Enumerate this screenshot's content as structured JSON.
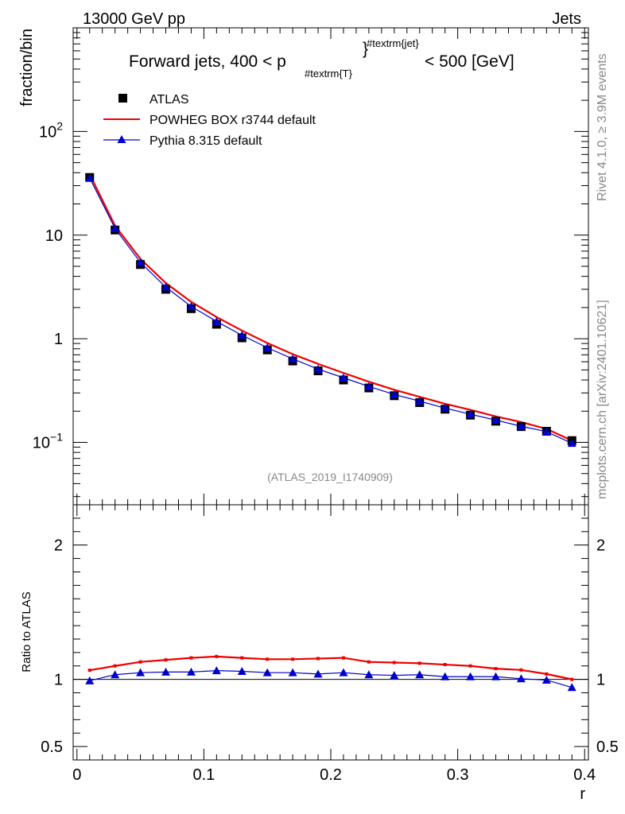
{
  "header": {
    "beam_label": "13000 GeV pp",
    "process_label": "Jets",
    "side_label_top": "Rivet 4.1.0, ≥ 3.9M events",
    "side_label_bottom": "mcplots.cern.ch [arXiv:2401.10621]",
    "watermark": "(ATLAS_2019_I1740909)"
  },
  "chart_data": [
    {
      "type": "line",
      "panel": "main",
      "title": "Forward jets, 400 < p_{#textrm{T}}^{#textrm{jet}} < 500 [GeV]",
      "title_parts": {
        "prefix": "Forward jets, 400 < p",
        "subscript": "#textrm{T}",
        "superscript": "#textrm{jet}",
        "suffix": "< 500 [GeV]"
      },
      "ylabel": "fraction/bin",
      "xlabel": "r",
      "yscale": "log",
      "xlim": [
        -0.003,
        0.403
      ],
      "ylim": [
        0.025,
        1000
      ],
      "y_tick_labels": [
        {
          "value": 100,
          "base": "10",
          "exp": "2"
        },
        {
          "value": 10,
          "base": "10",
          "exp": ""
        },
        {
          "value": 1,
          "base": "1",
          "exp": ""
        },
        {
          "value": 0.1,
          "base": "10",
          "exp": "−1"
        }
      ],
      "x": [
        0.01,
        0.03,
        0.05,
        0.07,
        0.09,
        0.11,
        0.13,
        0.15,
        0.17,
        0.19,
        0.21,
        0.23,
        0.25,
        0.27,
        0.29,
        0.31,
        0.33,
        0.35,
        0.37,
        0.39
      ],
      "series": [
        {
          "name": "ATLAS",
          "marker": "square",
          "color": "#000000",
          "values": [
            36,
            11.2,
            5.2,
            3.0,
            1.95,
            1.38,
            1.02,
            0.78,
            0.61,
            0.49,
            0.4,
            0.335,
            0.282,
            0.242,
            0.209,
            0.183,
            0.16,
            0.142,
            0.128,
            0.104
          ]
        },
        {
          "name": "POWHEG BOX r3744 default",
          "marker": "line",
          "color": "#ee0000",
          "values": [
            38.5,
            12.3,
            5.9,
            3.45,
            2.27,
            1.62,
            1.2,
            0.91,
            0.71,
            0.572,
            0.468,
            0.385,
            0.322,
            0.275,
            0.236,
            0.206,
            0.178,
            0.157,
            0.135,
            0.104
          ]
        },
        {
          "name": "Pythia 8.315 default",
          "marker": "triangle",
          "color": "#0000cc",
          "values": [
            35.6,
            11.6,
            5.45,
            3.15,
            2.05,
            1.47,
            1.08,
            0.82,
            0.64,
            0.51,
            0.42,
            0.346,
            0.29,
            0.25,
            0.214,
            0.187,
            0.164,
            0.143,
            0.127,
            0.098
          ]
        }
      ]
    },
    {
      "type": "line",
      "panel": "ratio",
      "ylabel": "Ratio to ATLAS",
      "xlabel": "r",
      "ylim": [
        0.4,
        2.3
      ],
      "y_ticks": [
        0.5,
        1,
        2
      ],
      "y_tick_labels": [
        "0.5",
        "1",
        "2"
      ],
      "x_tick_labels": [
        "0",
        "0.1",
        "0.2",
        "0.3",
        "0.4"
      ],
      "x": [
        0.01,
        0.03,
        0.05,
        0.07,
        0.09,
        0.11,
        0.13,
        0.15,
        0.17,
        0.19,
        0.21,
        0.23,
        0.25,
        0.27,
        0.29,
        0.31,
        0.33,
        0.35,
        0.37,
        0.39
      ],
      "series": [
        {
          "name": "POWHEG BOX r3744 default",
          "color": "#ee0000",
          "values": [
            1.068,
            1.1,
            1.13,
            1.145,
            1.16,
            1.17,
            1.16,
            1.15,
            1.15,
            1.155,
            1.16,
            1.13,
            1.125,
            1.12,
            1.11,
            1.1,
            1.08,
            1.07,
            1.04,
            1.0
          ]
        },
        {
          "name": "Pythia 8.315 default",
          "color": "#0000cc",
          "values": [
            0.99,
            1.035,
            1.05,
            1.055,
            1.055,
            1.065,
            1.06,
            1.05,
            1.05,
            1.04,
            1.05,
            1.035,
            1.03,
            1.035,
            1.02,
            1.02,
            1.02,
            1.005,
            0.995,
            0.94
          ]
        }
      ]
    }
  ]
}
